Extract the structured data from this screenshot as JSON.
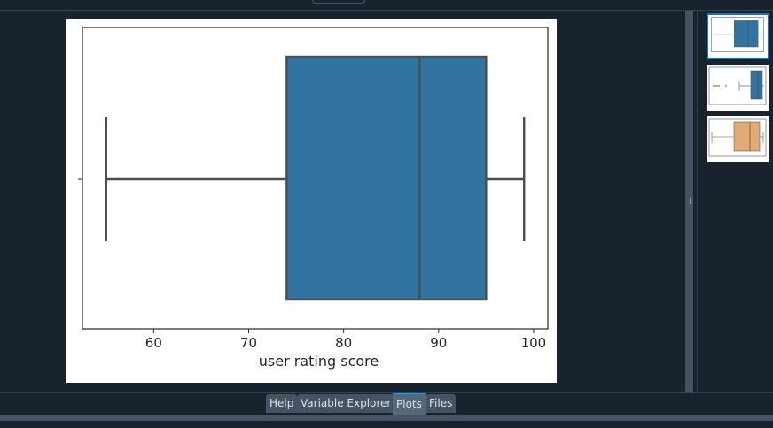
{
  "tabs": [
    {
      "label": "Help"
    },
    {
      "label": "Variable Explorer"
    },
    {
      "label": "Plots"
    },
    {
      "label": "Files"
    }
  ],
  "active_tab": "Plots",
  "thumbnail_colors": [
    "#3274a1",
    "#3274a1",
    "#e1ac74"
  ],
  "chart_data": {
    "type": "boxplot",
    "orientation": "horizontal",
    "xlabel": "user rating score",
    "xlim": [
      52.5,
      101.5
    ],
    "ticks": [
      60,
      70,
      80,
      90,
      100
    ],
    "tick_labels": [
      "60",
      "70",
      "80",
      "90",
      "100"
    ],
    "box": {
      "whisker_low": 55,
      "q1": 74,
      "median": 88,
      "q3": 95,
      "whisker_high": 99,
      "color": "#3274a1"
    },
    "grid": false
  }
}
